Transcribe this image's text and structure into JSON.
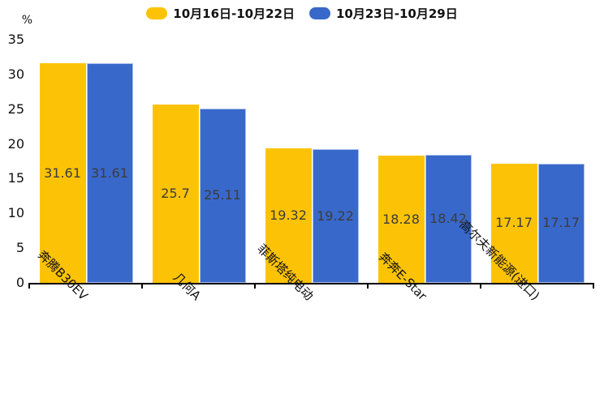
{
  "chart_data": {
    "type": "bar",
    "title": "",
    "unit": "%",
    "categories": [
      "奔腾B30EV",
      "几何A",
      "菲斯塔纯电动",
      "奔奔E-Star",
      "高尔夫新能源(进口)"
    ],
    "series": [
      {
        "name": "10月16日-10月22日",
        "color": "#FCC306",
        "values": [
          31.61,
          25.7,
          19.32,
          18.28,
          17.17
        ],
        "labels": [
          "31.61",
          "25.7",
          "19.32",
          "18.28",
          "17.17"
        ]
      },
      {
        "name": "10月23日-10月29日",
        "color": "#3968CB",
        "values": [
          31.61,
          25.11,
          19.22,
          18.42,
          17.17
        ],
        "labels": [
          "31.61",
          "25.11",
          "19.22",
          "18.42",
          "17.17"
        ]
      }
    ],
    "ylim": [
      0,
      35
    ],
    "yticks": [
      0,
      5,
      10,
      15,
      20,
      25,
      30,
      35
    ],
    "legend_position": "top",
    "grid": false,
    "value_labels_inside_bars": true
  }
}
